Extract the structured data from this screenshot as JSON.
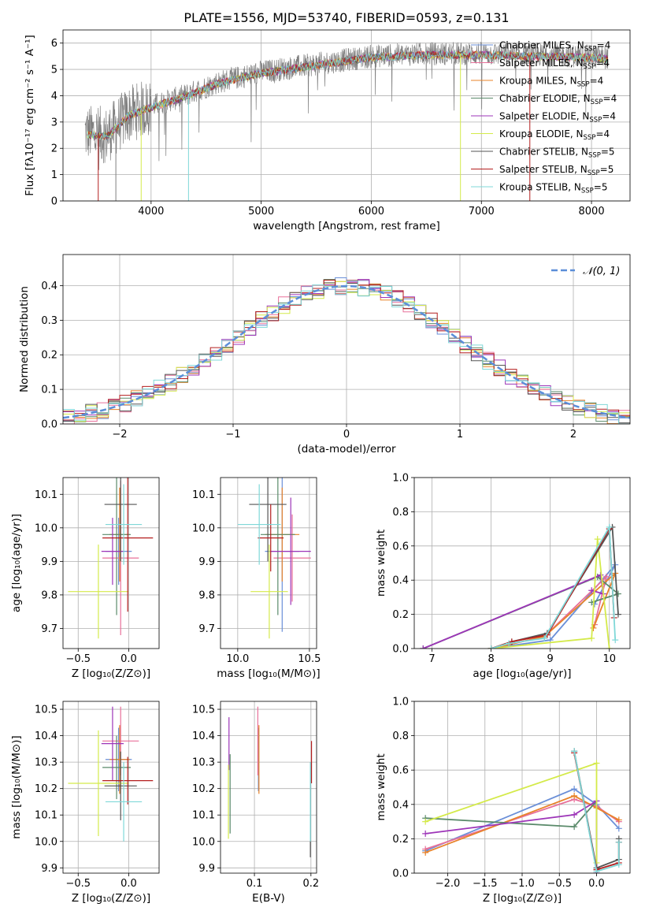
{
  "figure_title": "PLATE=1556, MJD=53740, FIBERID=0593, z=0.131",
  "colors": {
    "chabrier_miles": "#6a8fd8",
    "salpeter_miles": "#e8709a",
    "kroupa_miles": "#e8832a",
    "chabrier_elodie": "#5a8a6a",
    "salpeter_elodie": "#9d35b8",
    "kroupa_elodie": "#d4ea4a",
    "chabrier_stelib": "#555555",
    "salpeter_stelib": "#b41e1e",
    "kroupa_stelib": "#7fd8d8",
    "gauss": "#5b8ed8",
    "spec_grey": "#808080"
  },
  "legend_entries": [
    {
      "text": "Chabrier MILES, N",
      "sub": "SSP",
      "tail": "=4",
      "color": "chabrier_miles"
    },
    {
      "text": "Salpeter MILES, N",
      "sub": "SSP",
      "tail": "=4",
      "color": "salpeter_miles"
    },
    {
      "text": "Kroupa MILES, N",
      "sub": "SSP",
      "tail": "=4",
      "color": "kroupa_miles"
    },
    {
      "text": "Chabrier ELODIE, N",
      "sub": "SSP",
      "tail": "=4",
      "color": "chabrier_elodie"
    },
    {
      "text": "Salpeter ELODIE, N",
      "sub": "SSP",
      "tail": "=4",
      "color": "salpeter_elodie"
    },
    {
      "text": "Kroupa ELODIE, N",
      "sub": "SSP",
      "tail": "=4",
      "color": "kroupa_elodie"
    },
    {
      "text": "Chabrier STELIB, N",
      "sub": "SSP",
      "tail": "=5",
      "color": "chabrier_stelib"
    },
    {
      "text": "Salpeter STELIB, N",
      "sub": "SSP",
      "tail": "=5",
      "color": "salpeter_stelib"
    },
    {
      "text": "Kroupa STELIB, N",
      "sub": "SSP",
      "tail": "=5",
      "color": "kroupa_stelib"
    }
  ],
  "chart_data": [
    {
      "id": "spectrum",
      "type": "line",
      "xlabel": "wavelength [Angstrom, rest frame]",
      "ylabel": "Flux [fλ10⁻¹⁷ erg cm⁻² s⁻¹ A⁻¹]",
      "xlim": [
        3200,
        8350
      ],
      "ylim": [
        0,
        6.5
      ],
      "xticks": [
        4000,
        5000,
        6000,
        7000,
        8000
      ],
      "yticks": [
        0,
        1,
        2,
        3,
        4,
        5,
        6
      ],
      "continuum_points": [
        [
          3380,
          2.6
        ],
        [
          3600,
          2.5
        ],
        [
          3800,
          3.3
        ],
        [
          4000,
          3.6
        ],
        [
          4300,
          4.0
        ],
        [
          4600,
          4.5
        ],
        [
          5000,
          4.9
        ],
        [
          5500,
          5.2
        ],
        [
          6000,
          5.5
        ],
        [
          6500,
          5.6
        ],
        [
          7000,
          5.6
        ],
        [
          7500,
          5.55
        ],
        [
          8000,
          5.5
        ],
        [
          8150,
          5.45
        ]
      ]
    },
    {
      "id": "residuals",
      "type": "line",
      "xlabel": "(data-model)/error",
      "ylabel": "Normed distribution",
      "xlim": [
        -2.5,
        2.5
      ],
      "ylim": [
        0,
        0.49
      ],
      "xticks": [
        -2,
        -1,
        0,
        1,
        2
      ],
      "yticks": [
        0.0,
        0.1,
        0.2,
        0.3,
        0.4
      ],
      "legend": "𝒩(0, 1)",
      "bin_width": 0.1
    },
    {
      "id": "age_vs_Z",
      "type": "scatter",
      "xlabel": "Z [log₁₀(Z/Z⊙)]",
      "ylabel": "age  [log₁₀(age/yr)]",
      "xlim": [
        -0.65,
        0.3
      ],
      "ylim": [
        9.64,
        10.15
      ],
      "xticks": [
        -0.5,
        0.0
      ],
      "yticks": [
        9.7,
        9.8,
        9.9,
        10.0,
        10.1
      ],
      "points": [
        {
          "c": "chabrier_miles",
          "x": -0.1,
          "xe": 0.13,
          "y": 9.93,
          "ye": 0.1
        },
        {
          "c": "salpeter_miles",
          "x": -0.08,
          "xe": 0.18,
          "y": 9.91,
          "ye": 0.23
        },
        {
          "c": "kroupa_miles",
          "x": -0.09,
          "xe": 0.1,
          "y": 9.98,
          "ye": 0.14
        },
        {
          "c": "chabrier_elodie",
          "x": -0.12,
          "xe": 0.14,
          "y": 9.98,
          "ye": 0.24
        },
        {
          "c": "salpeter_elodie",
          "x": -0.16,
          "xe": 0.11,
          "y": 9.93,
          "ye": 0.1
        },
        {
          "c": "kroupa_elodie",
          "x": -0.3,
          "xe": 0.3,
          "y": 9.81,
          "ye": 0.14
        },
        {
          "c": "chabrier_stelib",
          "x": -0.08,
          "xe": 0.16,
          "y": 10.07,
          "ye": 0.17
        },
        {
          "c": "salpeter_stelib",
          "x": -0.01,
          "xe": 0.25,
          "y": 9.97,
          "ye": 0.22
        },
        {
          "c": "kroupa_stelib",
          "x": -0.05,
          "xe": 0.18,
          "y": 10.01,
          "ye": 0.12
        }
      ]
    },
    {
      "id": "age_vs_mass",
      "type": "scatter",
      "xlabel": "mass [log₁₀(M/M⊙)]",
      "ylabel": "",
      "xlim": [
        9.88,
        10.55
      ],
      "ylim": [
        9.64,
        10.15
      ],
      "xticks": [
        10.0,
        10.5
      ],
      "yticks": [
        9.7,
        9.8,
        9.9,
        10.0,
        10.1
      ],
      "points": [
        {
          "c": "chabrier_miles",
          "x": 10.31,
          "xe": 0.12,
          "y": 9.93,
          "ye": 0.24
        },
        {
          "c": "salpeter_miles",
          "x": 10.38,
          "xe": 0.13,
          "y": 9.91,
          "ye": 0.13
        },
        {
          "c": "kroupa_miles",
          "x": 10.31,
          "xe": 0.12,
          "y": 9.98,
          "ye": 0.14
        },
        {
          "c": "chabrier_elodie",
          "x": 10.28,
          "xe": 0.12,
          "y": 9.98,
          "ye": 0.24
        },
        {
          "c": "salpeter_elodie",
          "x": 10.37,
          "xe": 0.14,
          "y": 9.93,
          "ye": 0.16
        },
        {
          "c": "kroupa_elodie",
          "x": 10.22,
          "xe": 0.13,
          "y": 9.81,
          "ye": 0.14
        },
        {
          "c": "chabrier_stelib",
          "x": 10.21,
          "xe": 0.13,
          "y": 10.07,
          "ye": 0.17
        },
        {
          "c": "salpeter_stelib",
          "x": 10.23,
          "xe": 0.09,
          "y": 9.97,
          "ye": 0.1
        },
        {
          "c": "kroupa_stelib",
          "x": 10.15,
          "xe": 0.15,
          "y": 10.01,
          "ye": 0.12
        }
      ]
    },
    {
      "id": "weight_vs_age",
      "type": "line",
      "xlabel": "age  [log₁₀(age/yr)]",
      "ylabel": "mass weight",
      "xlim": [
        6.7,
        10.35
      ],
      "ylim": [
        0,
        1.0
      ],
      "xticks": [
        7,
        8,
        9,
        10
      ],
      "yticks": [
        0.0,
        0.2,
        0.4,
        0.6,
        0.8,
        1.0
      ],
      "series": [
        {
          "c": "chabrier_miles",
          "x": [
            8.0,
            9.0,
            10.1,
            9.75
          ],
          "y": [
            0.0,
            0.05,
            0.49,
            0.26
          ]
        },
        {
          "c": "salpeter_miles",
          "x": [
            8.0,
            8.9,
            9.95,
            9.75
          ],
          "y": [
            0.0,
            0.07,
            0.42,
            0.14
          ]
        },
        {
          "c": "kroupa_miles",
          "x": [
            8.0,
            8.9,
            10.1,
            9.73
          ],
          "y": [
            0.0,
            0.07,
            0.44,
            0.12
          ]
        },
        {
          "c": "chabrier_elodie",
          "x": [
            6.85,
            9.8,
            10.15,
            9.7
          ],
          "y": [
            0.0,
            0.42,
            0.32,
            0.27
          ]
        },
        {
          "c": "salpeter_elodie",
          "x": [
            6.85,
            9.85,
            9.9,
            9.7
          ],
          "y": [
            0.0,
            0.43,
            0.32,
            0.34
          ]
        },
        {
          "c": "kroupa_elodie",
          "x": [
            8.0,
            9.7,
            9.8,
            10.0
          ],
          "y": [
            0.0,
            0.06,
            0.64,
            0.0
          ]
        },
        {
          "c": "chabrier_stelib",
          "x": [
            8.0,
            8.35,
            8.95,
            10.05,
            10.15
          ],
          "y": [
            0.0,
            0.04,
            0.09,
            0.71,
            0.2
          ]
        },
        {
          "c": "salpeter_stelib",
          "x": [
            8.0,
            8.35,
            8.95,
            10.0,
            10.08
          ],
          "y": [
            0.0,
            0.04,
            0.08,
            0.7,
            0.18
          ]
        },
        {
          "c": "kroupa_stelib",
          "x": [
            8.0,
            8.3,
            8.9,
            10.0,
            10.1
          ],
          "y": [
            0.0,
            0.03,
            0.06,
            0.71,
            0.05
          ]
        }
      ]
    },
    {
      "id": "mass_vs_Z",
      "type": "scatter",
      "xlabel": "Z [log₁₀(Z/Z⊙)]",
      "ylabel": "mass [log₁₀(M/M⊙)]",
      "xlim": [
        -0.65,
        0.3
      ],
      "ylim": [
        9.88,
        10.53
      ],
      "xticks": [
        -0.5,
        0.0
      ],
      "yticks": [
        9.9,
        10.0,
        10.1,
        10.2,
        10.3,
        10.4,
        10.5
      ],
      "points": [
        {
          "c": "chabrier_miles",
          "x": -0.1,
          "xe": 0.13,
          "y": 10.31,
          "ye": 0.12
        },
        {
          "c": "salpeter_miles",
          "x": -0.08,
          "xe": 0.18,
          "y": 10.38,
          "ye": 0.13
        },
        {
          "c": "kroupa_miles",
          "x": -0.09,
          "xe": 0.1,
          "y": 10.31,
          "ye": 0.13
        },
        {
          "c": "chabrier_elodie",
          "x": -0.12,
          "xe": 0.14,
          "y": 10.28,
          "ye": 0.12
        },
        {
          "c": "salpeter_elodie",
          "x": -0.16,
          "xe": 0.11,
          "y": 10.37,
          "ye": 0.14
        },
        {
          "c": "kroupa_elodie",
          "x": -0.3,
          "xe": 0.3,
          "y": 10.22,
          "ye": 0.2
        },
        {
          "c": "chabrier_stelib",
          "x": -0.08,
          "xe": 0.16,
          "y": 10.21,
          "ye": 0.13
        },
        {
          "c": "salpeter_stelib",
          "x": -0.01,
          "xe": 0.25,
          "y": 10.23,
          "ye": 0.09
        },
        {
          "c": "kroupa_stelib",
          "x": -0.05,
          "xe": 0.18,
          "y": 10.15,
          "ye": 0.15
        }
      ]
    },
    {
      "id": "mass_vs_ebv",
      "type": "scatter",
      "xlabel": "E(B-V)",
      "ylabel": "",
      "xlim": [
        0.04,
        0.21
      ],
      "ylim": [
        9.88,
        10.53
      ],
      "xticks": [
        0.1,
        0.2
      ],
      "yticks": [
        9.9,
        10.0,
        10.1,
        10.2,
        10.3,
        10.4,
        10.5
      ],
      "points": [
        {
          "c": "chabrier_miles",
          "x": 0.107,
          "xe": 0,
          "y": 10.31,
          "ye": 0.12
        },
        {
          "c": "salpeter_miles",
          "x": 0.106,
          "xe": 0,
          "y": 10.38,
          "ye": 0.13
        },
        {
          "c": "kroupa_miles",
          "x": 0.108,
          "xe": 0,
          "y": 10.31,
          "ye": 0.13
        },
        {
          "c": "chabrier_elodie",
          "x": 0.057,
          "xe": 0,
          "y": 10.18,
          "ye": 0.15
        },
        {
          "c": "salpeter_elodie",
          "x": 0.055,
          "xe": 0,
          "y": 10.37,
          "ye": 0.1
        },
        {
          "c": "kroupa_elodie",
          "x": 0.054,
          "xe": 0,
          "y": 10.15,
          "ye": 0.14
        },
        {
          "c": "chabrier_stelib",
          "x": 0.199,
          "xe": 0,
          "y": 10.12,
          "ye": 0.18
        },
        {
          "c": "salpeter_stelib",
          "x": 0.201,
          "xe": 0,
          "y": 10.3,
          "ye": 0.08
        },
        {
          "c": "kroupa_stelib",
          "x": 0.199,
          "xe": 0,
          "y": 10.15,
          "ye": 0.15
        }
      ]
    },
    {
      "id": "weight_vs_Z",
      "type": "line",
      "xlabel": "Z [log₁₀(Z/Z⊙)]",
      "ylabel": "mass weight",
      "xlim": [
        -2.45,
        0.45
      ],
      "ylim": [
        0,
        1.0
      ],
      "xticks": [
        -2.0,
        -1.5,
        -1.0,
        -0.5,
        0.0
      ],
      "yticks": [
        0.0,
        0.2,
        0.4,
        0.6,
        0.8,
        1.0
      ],
      "series": [
        {
          "c": "chabrier_miles",
          "x": [
            -2.3,
            -0.3,
            0.0,
            0.3
          ],
          "y": [
            0.13,
            0.49,
            0.4,
            0.26
          ]
        },
        {
          "c": "salpeter_miles",
          "x": [
            -2.3,
            -0.3,
            0.0,
            0.3
          ],
          "y": [
            0.14,
            0.43,
            0.39,
            0.3
          ]
        },
        {
          "c": "kroupa_miles",
          "x": [
            -2.3,
            -0.3,
            0.0,
            0.3
          ],
          "y": [
            0.12,
            0.45,
            0.38,
            0.31
          ]
        },
        {
          "c": "chabrier_elodie",
          "x": [
            -2.3,
            -0.3,
            0.0,
            0.0
          ],
          "y": [
            0.32,
            0.27,
            0.42,
            0.0
          ]
        },
        {
          "c": "salpeter_elodie",
          "x": [
            -2.3,
            -0.3,
            0.0,
            0.0
          ],
          "y": [
            0.23,
            0.34,
            0.42,
            0.0
          ]
        },
        {
          "c": "kroupa_elodie",
          "x": [
            -2.3,
            0.0,
            0.0
          ],
          "y": [
            0.3,
            0.64,
            0.06
          ]
        },
        {
          "c": "chabrier_stelib",
          "x": [
            -0.3,
            0.0,
            0.3,
            0.3
          ],
          "y": [
            0.71,
            0.03,
            0.08,
            0.2
          ]
        },
        {
          "c": "salpeter_stelib",
          "x": [
            -0.3,
            0.0,
            0.3,
            0.3
          ],
          "y": [
            0.7,
            0.02,
            0.06,
            0.18
          ]
        },
        {
          "c": "kroupa_stelib",
          "x": [
            -0.3,
            0.0,
            0.3,
            0.3
          ],
          "y": [
            0.71,
            0.01,
            0.05,
            0.18
          ]
        }
      ]
    }
  ]
}
